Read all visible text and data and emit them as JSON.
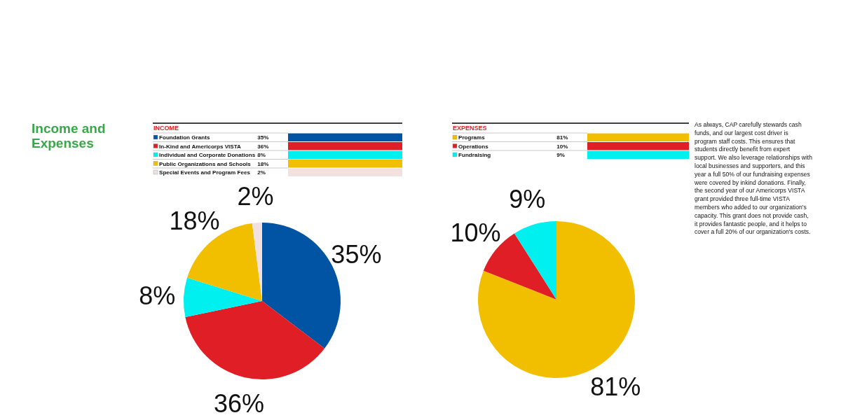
{
  "chart_data": [
    {
      "type": "pie",
      "title": "INCOME",
      "annotations": [
        "Income and Expenses"
      ],
      "categories": [
        "Foundation Grants",
        "In-Kind and Americorps VISTA",
        "Individual and Corporate Donations",
        "Public Organizations and Schools",
        "Special Events and Program Fees"
      ],
      "values": [
        35,
        36,
        8,
        18,
        2
      ],
      "value_labels": [
        "35%",
        "36%",
        "8%",
        "18%",
        "2%"
      ],
      "colors": [
        "#0054a3",
        "#e01e26",
        "#00f0f0",
        "#f1bf00",
        "#f2e1df"
      ],
      "legend": "top"
    },
    {
      "type": "pie",
      "title": "EXPENSES",
      "annotations": [
        "As always, CAP carefully stewards cash funds, and our largest cost driver is program staff costs. This ensures that students directly benefit from expert support. We also leverage relationships with local businesses and supporters, and this year a full 50% of our fundraising expenses were covered by inkind donations. Finally, the second year of our Americorps VISTA grant provided three full-time VISTA members who added to our organization's capacity. This grant does not provide cash, it provides fantastic people, and it helps to cover a full 20% of our organization's costs."
      ],
      "categories": [
        "Programs",
        "Operations",
        "Fundraising"
      ],
      "values": [
        81,
        10,
        9
      ],
      "value_labels": [
        "81%",
        "10%",
        "9%"
      ],
      "colors": [
        "#f1bf00",
        "#e01e26",
        "#00f0f0"
      ],
      "legend": "top"
    }
  ]
}
